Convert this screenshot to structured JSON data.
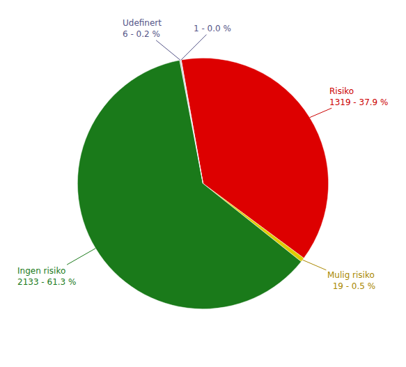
{
  "chart_data": {
    "type": "pie",
    "values": [
      1319,
      19,
      2133,
      6,
      1
    ],
    "colors": [
      "#dd0000",
      "#ddcc00",
      "#1a7a1a",
      "#c8c8c8",
      "#9999bb"
    ],
    "annotations": [
      {
        "text": "Risiko\n1319 - 37.9 %",
        "color": "#cc0000"
      },
      {
        "text": "Mulig risiko\n  19 - 0.5 %",
        "color": "#aa8800"
      },
      {
        "text": "Ingen risiko\n2133 - 61.3 %",
        "color": "#1a7a1a"
      },
      {
        "text": "Udefinert\n6 - 0.2 %",
        "color": "#555588"
      },
      {
        "text": "1 - 0.0 %",
        "color": "#555588"
      }
    ]
  }
}
